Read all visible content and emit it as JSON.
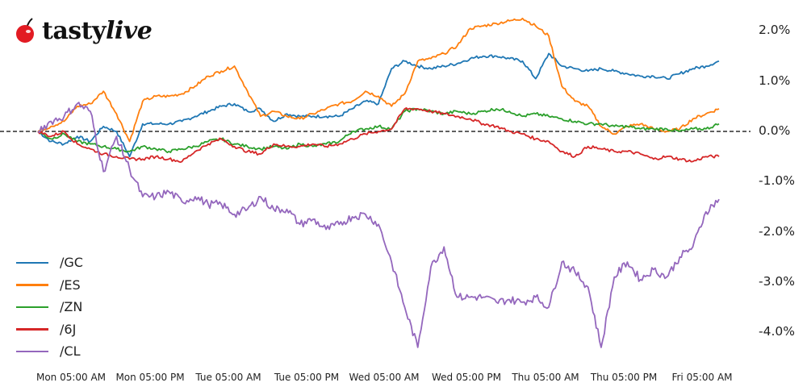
{
  "brand": {
    "logo_text_main": "tasty",
    "logo_text_accent": "live",
    "logo_icon": "cherry-icon",
    "logo_color": "#e21b23"
  },
  "chart_data": {
    "type": "line",
    "title": "",
    "xlabel": "",
    "ylabel": "",
    "ylim": [
      -4.8,
      2.6
    ],
    "y_axis_position": "right",
    "grid": false,
    "zero_reference_line": {
      "y": 0,
      "style": "dashed",
      "color": "#000000"
    },
    "legend_position": "lower left",
    "x_tick_labels": [
      "Mon 05:00 AM",
      "Mon 05:00 PM",
      "Tue 05:00 AM",
      "Tue 05:00 PM",
      "Wed 05:00 AM",
      "Wed 05:00 PM",
      "Thu 05:00 AM",
      "Thu 05:00 PM",
      "Fri 05:00 AM"
    ],
    "y_tick_labels": [
      "2.0%",
      "1.0%",
      "0.0%",
      "-1.0%",
      "-2.0%",
      "-3.0%",
      "-4.0%"
    ],
    "y_tick_values": [
      2.0,
      1.0,
      0.0,
      -1.0,
      -2.0,
      -3.0,
      -4.0
    ],
    "x": [
      "Mon 01:00 AM",
      "Mon 03:00 AM",
      "Mon 05:00 AM",
      "Mon 07:00 AM",
      "Mon 09:00 AM",
      "Mon 11:00 AM",
      "Mon 01:00 PM",
      "Mon 03:00 PM",
      "Mon 05:00 PM",
      "Mon 07:00 PM",
      "Mon 09:00 PM",
      "Mon 11:00 PM",
      "Tue 01:00 AM",
      "Tue 03:00 AM",
      "Tue 05:00 AM",
      "Tue 07:00 AM",
      "Tue 09:00 AM",
      "Tue 11:00 AM",
      "Tue 01:00 PM",
      "Tue 03:00 PM",
      "Tue 05:00 PM",
      "Tue 07:00 PM",
      "Tue 09:00 PM",
      "Tue 11:00 PM",
      "Wed 01:00 AM",
      "Wed 03:00 AM",
      "Wed 05:00 AM",
      "Wed 07:00 AM",
      "Wed 09:00 AM",
      "Wed 11:00 AM",
      "Wed 01:00 PM",
      "Wed 03:00 PM",
      "Wed 05:00 PM",
      "Wed 07:00 PM",
      "Wed 09:00 PM",
      "Wed 11:00 PM",
      "Thu 01:00 AM",
      "Thu 03:00 AM",
      "Thu 05:00 AM",
      "Thu 07:00 AM",
      "Thu 09:00 AM",
      "Thu 11:00 AM",
      "Thu 01:00 PM",
      "Thu 03:00 PM",
      "Thu 05:00 PM",
      "Thu 07:00 PM",
      "Thu 09:00 PM",
      "Thu 11:00 PM",
      "Fri 01:00 AM",
      "Fri 03:00 AM",
      "Fri 05:00 AM",
      "Fri 07:00 AM",
      "Fri 09:00 AM"
    ],
    "series": [
      {
        "name": "/GC",
        "color": "#1f77b4",
        "values": [
          0.0,
          -0.2,
          -0.25,
          -0.1,
          -0.2,
          0.1,
          0.0,
          -0.5,
          0.15,
          0.15,
          0.15,
          0.2,
          0.3,
          0.4,
          0.5,
          0.55,
          0.4,
          0.45,
          0.2,
          0.35,
          0.3,
          0.3,
          0.3,
          0.3,
          0.45,
          0.6,
          0.55,
          1.25,
          1.4,
          1.3,
          1.25,
          1.3,
          1.35,
          1.45,
          1.5,
          1.5,
          1.45,
          1.4,
          1.05,
          1.55,
          1.3,
          1.25,
          1.2,
          1.25,
          1.2,
          1.15,
          1.1,
          1.1,
          1.05,
          1.15,
          1.25,
          1.3,
          1.4
        ]
      },
      {
        "name": "/ES",
        "color": "#ff7f0e",
        "values": [
          0.0,
          0.1,
          0.2,
          0.5,
          0.55,
          0.8,
          0.35,
          -0.2,
          0.6,
          0.7,
          0.7,
          0.75,
          0.9,
          1.1,
          1.2,
          1.3,
          0.8,
          0.3,
          0.4,
          0.3,
          0.25,
          0.35,
          0.45,
          0.55,
          0.6,
          0.8,
          0.7,
          0.5,
          0.75,
          1.4,
          1.45,
          1.55,
          1.7,
          2.05,
          2.1,
          2.15,
          2.2,
          2.25,
          2.1,
          1.9,
          0.9,
          0.6,
          0.5,
          0.1,
          -0.05,
          0.1,
          0.15,
          0.05,
          0.0,
          0.05,
          0.25,
          0.35,
          0.45
        ]
      },
      {
        "name": "/ZN",
        "color": "#2ca02c",
        "values": [
          0.0,
          -0.15,
          -0.05,
          -0.2,
          -0.25,
          -0.3,
          -0.35,
          -0.4,
          -0.3,
          -0.35,
          -0.4,
          -0.35,
          -0.3,
          -0.2,
          -0.15,
          -0.25,
          -0.3,
          -0.35,
          -0.3,
          -0.35,
          -0.25,
          -0.3,
          -0.25,
          -0.2,
          0.0,
          0.05,
          0.1,
          0.05,
          0.4,
          0.45,
          0.4,
          0.35,
          0.4,
          0.35,
          0.4,
          0.45,
          0.4,
          0.3,
          0.35,
          0.3,
          0.25,
          0.2,
          0.15,
          0.15,
          0.1,
          0.1,
          0.05,
          0.05,
          0.05,
          0.0,
          0.05,
          0.05,
          0.15
        ]
      },
      {
        "name": "/6J",
        "color": "#d62728",
        "values": [
          0.0,
          -0.1,
          0.0,
          -0.25,
          -0.35,
          -0.45,
          -0.5,
          -0.55,
          -0.55,
          -0.5,
          -0.55,
          -0.6,
          -0.4,
          -0.25,
          -0.15,
          -0.3,
          -0.4,
          -0.45,
          -0.25,
          -0.3,
          -0.3,
          -0.25,
          -0.3,
          -0.25,
          -0.15,
          -0.05,
          0.0,
          0.05,
          0.45,
          0.45,
          0.4,
          0.35,
          0.3,
          0.25,
          0.15,
          0.1,
          0.0,
          -0.05,
          -0.15,
          -0.2,
          -0.4,
          -0.5,
          -0.3,
          -0.35,
          -0.4,
          -0.4,
          -0.45,
          -0.55,
          -0.5,
          -0.55,
          -0.6,
          -0.5,
          -0.5
        ]
      },
      {
        "name": "/CL",
        "color": "#9467bd",
        "values": [
          0.0,
          0.2,
          0.3,
          0.55,
          0.4,
          -0.8,
          -0.1,
          -0.75,
          -1.3,
          -1.3,
          -1.2,
          -1.4,
          -1.3,
          -1.45,
          -1.45,
          -1.65,
          -1.55,
          -1.3,
          -1.55,
          -1.55,
          -1.85,
          -1.75,
          -1.95,
          -1.85,
          -1.7,
          -1.65,
          -1.85,
          -2.6,
          -3.5,
          -4.3,
          -2.7,
          -2.3,
          -3.3,
          -3.3,
          -3.3,
          -3.4,
          -3.35,
          -3.4,
          -3.3,
          -3.5,
          -2.6,
          -2.8,
          -3.1,
          -4.3,
          -2.9,
          -2.6,
          -2.95,
          -2.75,
          -2.9,
          -2.5,
          -2.3,
          -1.6,
          -1.35
        ]
      }
    ]
  },
  "legend": [
    {
      "label": "/GC",
      "color": "#1f77b4"
    },
    {
      "label": "/ES",
      "color": "#ff7f0e"
    },
    {
      "label": "/ZN",
      "color": "#2ca02c"
    },
    {
      "label": "/6J",
      "color": "#d62728"
    },
    {
      "label": "/CL",
      "color": "#9467bd"
    }
  ]
}
